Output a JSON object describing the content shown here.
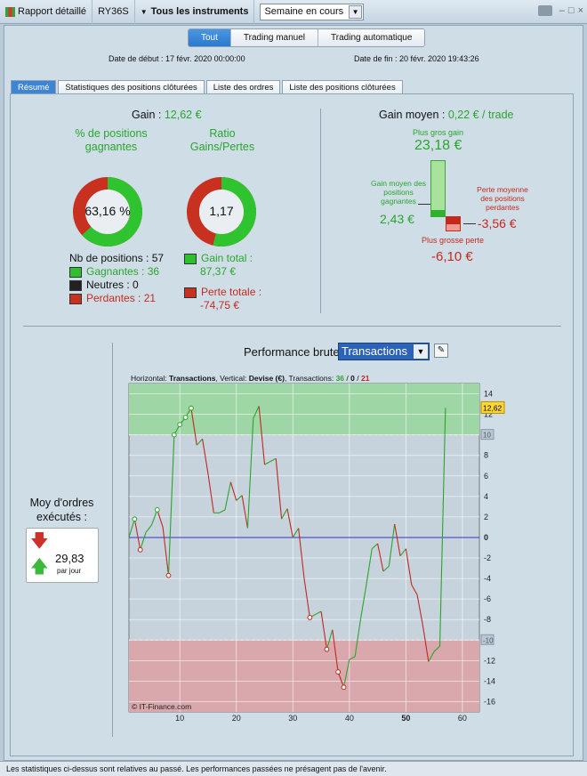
{
  "toolbar": {
    "report_label": "Rapport détaillé",
    "symbol": "RY36S",
    "instruments_label": "Tous les instruments",
    "period_value": "Semaine en cours",
    "window_controls": [
      "–",
      "□",
      "×"
    ]
  },
  "filter_tabs": [
    "Tout",
    "Trading manuel",
    "Trading automatique"
  ],
  "dates": {
    "start": "Date de début : 17 févr. 2020 00:00:00",
    "end": "Date de fin : 20 févr. 2020 19:43:26"
  },
  "tabs": [
    "Résumé",
    "Statistiques des positions clôturées",
    "Liste des ordres",
    "Liste des positions clôturées"
  ],
  "summary": {
    "gain_label": "Gain",
    "gain_value": "12,62 €",
    "pct_title": "% de positions gagnantes",
    "pct_value": "63,16 %",
    "ratio_title": "Ratio Gains/Pertes",
    "ratio_value": "1,17",
    "nb_positions": "Nb de positions : 57",
    "gagnantes": "Gagnantes : 36",
    "neutres": "Neutres : 0",
    "perdantes": "Perdantes : 21",
    "gain_total_label": "Gain total :",
    "gain_total_value": "87,37 €",
    "perte_totale_label": "Perte totale :",
    "perte_totale_value": "-74,75 €",
    "pct_winning": 0.6316,
    "ratio_fraction": 0.539,
    "gain_moyen_label": "Gain moyen",
    "gain_moyen_value": "0,22 € / trade",
    "plus_gros_gain_label": "Plus gros gain",
    "plus_gros_gain_value": "23,18 €",
    "gain_moyen_pos_label": "Gain moyen des positions gagnantes",
    "gain_moyen_pos_value": "2,43 €",
    "perte_moyenne_label": "Perte moyenne des positions perdantes",
    "perte_moyenne_value": "-3,56 €",
    "plus_grosse_perte_label": "Plus grosse perte",
    "plus_grosse_perte_value": "-6,10 €"
  },
  "orders": {
    "label": "Moy d'ordres exécutés :",
    "value": "29,83",
    "unit": "par jour"
  },
  "performance": {
    "title": "Performance brute",
    "select_value": "Transactions"
  },
  "footer_text": "Les statistiques ci-dessus sont relatives au passé. Les performances passées ne présagent pas de l'avenir.",
  "chart_data": {
    "type": "line",
    "header_prefix": "Horizontal:",
    "header_x": "Transactions",
    "header_mid": ", Vertical:",
    "header_y": "Devise (€)",
    "header_mid2": ", Transactions:",
    "count_win": "36",
    "count_neutral": "0",
    "count_loss": "21",
    "xlim": [
      1,
      63
    ],
    "ylim": [
      -17,
      15
    ],
    "x_ticks": [
      "10",
      "20",
      "30",
      "40",
      "50",
      "60"
    ],
    "y_ticks": [
      "14",
      "12",
      "10",
      "8",
      "6",
      "4",
      "2",
      "0",
      "-2",
      "-4",
      "-6",
      "-8",
      "-10",
      "-12",
      "-14",
      "-16"
    ],
    "upper_band": 10,
    "lower_band": -10,
    "last_value_label": "12,62",
    "upper_label": "10",
    "lower_label": "-10",
    "copyright": "© IT-Finance.com",
    "colors": {
      "win": "#2aa52a",
      "loss": "#c0291e",
      "zero": "#3333cc",
      "band_up": "#9fd6a6",
      "band_down": "#d9a8ad"
    },
    "series": [
      {
        "x": 1,
        "y": 0
      },
      {
        "x": 2,
        "y": 1.8
      },
      {
        "x": 3,
        "y": -1.2
      },
      {
        "x": 4,
        "y": 0.5
      },
      {
        "x": 5,
        "y": 1.2
      },
      {
        "x": 6,
        "y": 2.7
      },
      {
        "x": 7,
        "y": 1.0
      },
      {
        "x": 8,
        "y": -3.7
      },
      {
        "x": 9,
        "y": 10.0
      },
      {
        "x": 10,
        "y": 11.0
      },
      {
        "x": 11,
        "y": 11.7
      },
      {
        "x": 12,
        "y": 12.6
      },
      {
        "x": 13,
        "y": 9.0
      },
      {
        "x": 14,
        "y": 9.6
      },
      {
        "x": 15,
        "y": 6.2
      },
      {
        "x": 16,
        "y": 2.4
      },
      {
        "x": 17,
        "y": 2.4
      },
      {
        "x": 18,
        "y": 2.7
      },
      {
        "x": 19,
        "y": 5.4
      },
      {
        "x": 20,
        "y": 3.6
      },
      {
        "x": 21,
        "y": 4.1
      },
      {
        "x": 22,
        "y": 0.9
      },
      {
        "x": 23,
        "y": 11.6
      },
      {
        "x": 24,
        "y": 12.8
      },
      {
        "x": 25,
        "y": 7.1
      },
      {
        "x": 26,
        "y": 7.4
      },
      {
        "x": 27,
        "y": 7.7
      },
      {
        "x": 28,
        "y": 1.8
      },
      {
        "x": 29,
        "y": 2.8
      },
      {
        "x": 30,
        "y": 0.0
      },
      {
        "x": 31,
        "y": 0.9
      },
      {
        "x": 32,
        "y": -4.0
      },
      {
        "x": 33,
        "y": -7.8
      },
      {
        "x": 34,
        "y": -7.5
      },
      {
        "x": 35,
        "y": -7.2
      },
      {
        "x": 36,
        "y": -10.9
      },
      {
        "x": 37,
        "y": -9.0
      },
      {
        "x": 38,
        "y": -13.1
      },
      {
        "x": 39,
        "y": -14.6
      },
      {
        "x": 40,
        "y": -11.9
      },
      {
        "x": 41,
        "y": -11.6
      },
      {
        "x": 42,
        "y": -7.9
      },
      {
        "x": 43,
        "y": -4.6
      },
      {
        "x": 44,
        "y": -1.1
      },
      {
        "x": 45,
        "y": -0.6
      },
      {
        "x": 46,
        "y": -3.3
      },
      {
        "x": 47,
        "y": -2.8
      },
      {
        "x": 48,
        "y": 1.3
      },
      {
        "x": 49,
        "y": -1.8
      },
      {
        "x": 50,
        "y": -1.1
      },
      {
        "x": 51,
        "y": -4.6
      },
      {
        "x": 52,
        "y": -5.6
      },
      {
        "x": 53,
        "y": -8.6
      },
      {
        "x": 54,
        "y": -12.1
      },
      {
        "x": 55,
        "y": -11.1
      },
      {
        "x": 56,
        "y": -10.6
      },
      {
        "x": 57,
        "y": 12.62
      }
    ],
    "marked_points": [
      2,
      3,
      6,
      8,
      9,
      10,
      11,
      12,
      33,
      36,
      38,
      39
    ]
  }
}
